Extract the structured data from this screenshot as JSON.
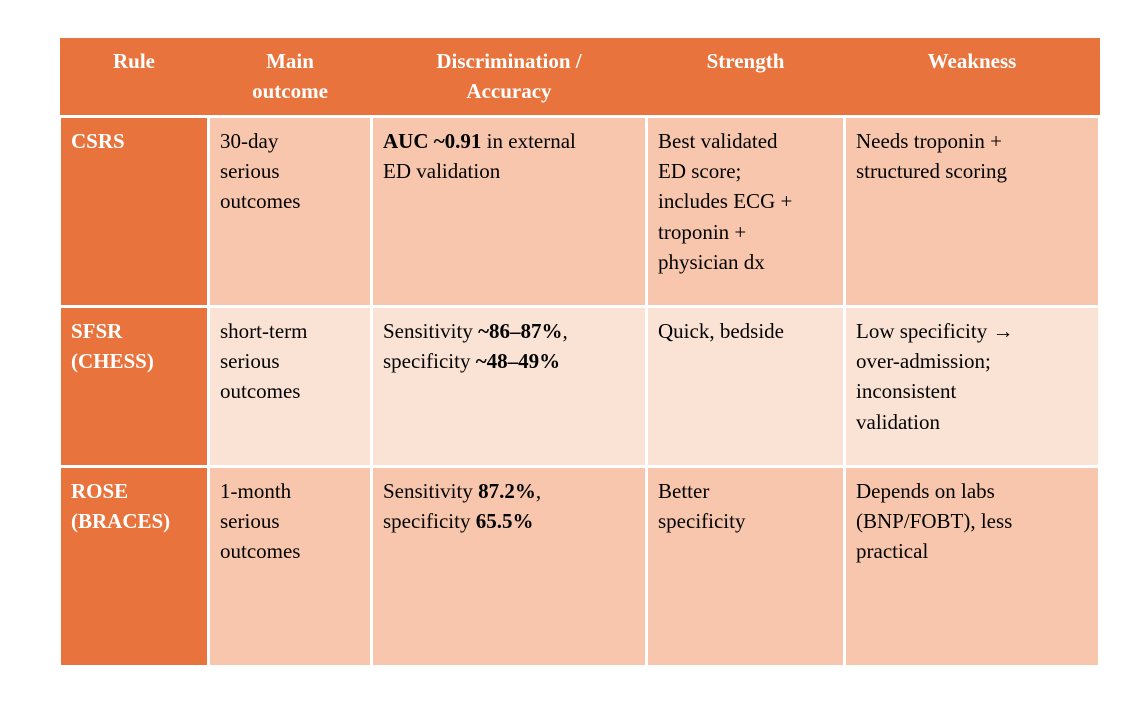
{
  "table": {
    "headers": [
      "Rule",
      "Main\noutcome",
      "Discrimination /\nAccuracy",
      "Strength",
      "Weakness"
    ],
    "rows": [
      {
        "rule": "CSRS",
        "main_outcome": "30-day\nserious\noutcomes",
        "discrimination": [
          {
            "text": "AUC ~0.91",
            "bold": true
          },
          {
            "text": " in external\nED validation",
            "bold": false
          }
        ],
        "strength": "Best validated\nED score;\nincludes ECG +\ntroponin +\nphysician dx",
        "weakness": "Needs troponin +\nstructured scoring"
      },
      {
        "rule": "SFSR\n(CHESS)",
        "main_outcome": "short-term\nserious\noutcomes",
        "discrimination": [
          {
            "text": "Sensitivity ",
            "bold": false
          },
          {
            "text": "~86–87%",
            "bold": true
          },
          {
            "text": ",\nspecificity ",
            "bold": false
          },
          {
            "text": "~48–49%",
            "bold": true
          }
        ],
        "strength": "Quick, bedside",
        "weakness": "Low specificity →\nover-admission;\ninconsistent\nvalidation"
      },
      {
        "rule": "ROSE\n(BRACES)",
        "main_outcome": "1-month\nserious\noutcomes",
        "discrimination": [
          {
            "text": "Sensitivity ",
            "bold": false
          },
          {
            "text": "87.2%",
            "bold": true
          },
          {
            "text": ",\nspecificity ",
            "bold": false
          },
          {
            "text": "65.5%",
            "bold": true
          }
        ],
        "strength": "Better\nspecificity",
        "weakness": "Depends on labs\n(BNP/FOBT), less\npractical"
      }
    ],
    "colors": {
      "accent_orange": "#E9733C",
      "band_dark_peach": "#F7C6AC",
      "band_light_peach": "#FAE3D5",
      "gridline_white": "#FFFFFF",
      "header_text": "#FFFFFF",
      "body_text": "#000000"
    }
  }
}
